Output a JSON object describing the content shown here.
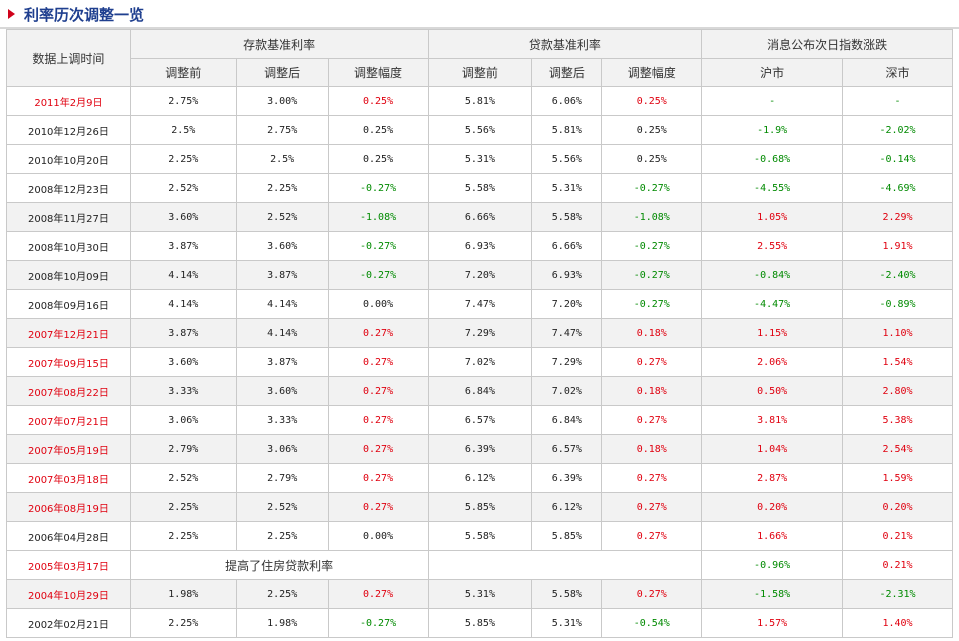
{
  "title": "利率历次调整一览",
  "headers": {
    "date": "数据上调时间",
    "deposit": "存款基准利率",
    "loan": "贷款基准利率",
    "index": "消息公布次日指数涨跌",
    "before": "调整前",
    "after": "调整后",
    "range": "调整幅度",
    "sh": "沪市",
    "sz": "深市"
  },
  "rows": [
    {
      "date": "2011年2月9日",
      "dc": "red",
      "d1": "2.75%",
      "d2": "3.00%",
      "d3": "0.25%",
      "d3c": "red",
      "l1": "5.81%",
      "l2": "6.06%",
      "l3": "0.25%",
      "l3c": "red",
      "sh": "-",
      "shc": "green",
      "sz": "-",
      "szc": "green",
      "alt": false
    },
    {
      "date": "2010年12月26日",
      "dc": "",
      "d1": "2.5%",
      "d2": "2.75%",
      "d3": "0.25%",
      "d3c": "",
      "l1": "5.56%",
      "l2": "5.81%",
      "l3": "0.25%",
      "l3c": "",
      "sh": "-1.9%",
      "shc": "green",
      "sz": "-2.02%",
      "szc": "green",
      "alt": false
    },
    {
      "date": "2010年10月20日",
      "dc": "",
      "d1": "2.25%",
      "d2": "2.5%",
      "d3": "0.25%",
      "d3c": "",
      "l1": "5.31%",
      "l2": "5.56%",
      "l3": "0.25%",
      "l3c": "",
      "sh": "-0.68%",
      "shc": "green",
      "sz": "-0.14%",
      "szc": "green",
      "alt": false
    },
    {
      "date": "2008年12月23日",
      "dc": "",
      "d1": "2.52%",
      "d2": "2.25%",
      "d3": "-0.27%",
      "d3c": "green",
      "l1": "5.58%",
      "l2": "5.31%",
      "l3": "-0.27%",
      "l3c": "green",
      "sh": "-4.55%",
      "shc": "green",
      "sz": "-4.69%",
      "szc": "green",
      "alt": false
    },
    {
      "date": "2008年11月27日",
      "dc": "",
      "d1": "3.60%",
      "d2": "2.52%",
      "d3": "-1.08%",
      "d3c": "green",
      "l1": "6.66%",
      "l2": "5.58%",
      "l3": "-1.08%",
      "l3c": "green",
      "sh": "1.05%",
      "shc": "red",
      "sz": "2.29%",
      "szc": "red",
      "alt": true
    },
    {
      "date": "2008年10月30日",
      "dc": "",
      "d1": "3.87%",
      "d2": "3.60%",
      "d3": "-0.27%",
      "d3c": "green",
      "l1": "6.93%",
      "l2": "6.66%",
      "l3": "-0.27%",
      "l3c": "green",
      "sh": "2.55%",
      "shc": "red",
      "sz": "1.91%",
      "szc": "red",
      "alt": false
    },
    {
      "date": "2008年10月09日",
      "dc": "",
      "d1": "4.14%",
      "d2": "3.87%",
      "d3": "-0.27%",
      "d3c": "green",
      "l1": "7.20%",
      "l2": "6.93%",
      "l3": "-0.27%",
      "l3c": "green",
      "sh": "-0.84%",
      "shc": "green",
      "sz": "-2.40%",
      "szc": "green",
      "alt": true
    },
    {
      "date": "2008年09月16日",
      "dc": "",
      "d1": "4.14%",
      "d2": "4.14%",
      "d3": "0.00%",
      "d3c": "",
      "l1": "7.47%",
      "l2": "7.20%",
      "l3": "-0.27%",
      "l3c": "green",
      "sh": "-4.47%",
      "shc": "green",
      "sz": "-0.89%",
      "szc": "green",
      "alt": false
    },
    {
      "date": "2007年12月21日",
      "dc": "red",
      "d1": "3.87%",
      "d2": "4.14%",
      "d3": "0.27%",
      "d3c": "red",
      "l1": "7.29%",
      "l2": "7.47%",
      "l3": "0.18%",
      "l3c": "red",
      "sh": "1.15%",
      "shc": "red",
      "sz": "1.10%",
      "szc": "red",
      "alt": true
    },
    {
      "date": "2007年09月15日",
      "dc": "red",
      "d1": "3.60%",
      "d2": "3.87%",
      "d3": "0.27%",
      "d3c": "red",
      "l1": "7.02%",
      "l2": "7.29%",
      "l3": "0.27%",
      "l3c": "red",
      "sh": "2.06%",
      "shc": "red",
      "sz": "1.54%",
      "szc": "red",
      "alt": false
    },
    {
      "date": "2007年08月22日",
      "dc": "red",
      "d1": "3.33%",
      "d2": "3.60%",
      "d3": "0.27%",
      "d3c": "red",
      "l1": "6.84%",
      "l2": "7.02%",
      "l3": "0.18%",
      "l3c": "red",
      "sh": "0.50%",
      "shc": "red",
      "sz": "2.80%",
      "szc": "red",
      "alt": true
    },
    {
      "date": "2007年07月21日",
      "dc": "red",
      "d1": "3.06%",
      "d2": "3.33%",
      "d3": "0.27%",
      "d3c": "red",
      "l1": "6.57%",
      "l2": "6.84%",
      "l3": "0.27%",
      "l3c": "red",
      "sh": "3.81%",
      "shc": "red",
      "sz": "5.38%",
      "szc": "red",
      "alt": false
    },
    {
      "date": "2007年05月19日",
      "dc": "red",
      "d1": "2.79%",
      "d2": "3.06%",
      "d3": "0.27%",
      "d3c": "red",
      "l1": "6.39%",
      "l2": "6.57%",
      "l3": "0.18%",
      "l3c": "red",
      "sh": "1.04%",
      "shc": "red",
      "sz": "2.54%",
      "szc": "red",
      "alt": true
    },
    {
      "date": "2007年03月18日",
      "dc": "red",
      "d1": "2.52%",
      "d2": "2.79%",
      "d3": "0.27%",
      "d3c": "red",
      "l1": "6.12%",
      "l2": "6.39%",
      "l3": "0.27%",
      "l3c": "red",
      "sh": "2.87%",
      "shc": "red",
      "sz": "1.59%",
      "szc": "red",
      "alt": false
    },
    {
      "date": "2006年08月19日",
      "dc": "red",
      "d1": "2.25%",
      "d2": "2.52%",
      "d3": "0.27%",
      "d3c": "red",
      "l1": "5.85%",
      "l2": "6.12%",
      "l3": "0.27%",
      "l3c": "red",
      "sh": "0.20%",
      "shc": "red",
      "sz": "0.20%",
      "szc": "red",
      "alt": true
    },
    {
      "date": "2006年04月28日",
      "dc": "",
      "d1": "2.25%",
      "d2": "2.25%",
      "d3": "0.00%",
      "d3c": "",
      "l1": "5.58%",
      "l2": "5.85%",
      "l3": "0.27%",
      "l3c": "red",
      "sh": "1.66%",
      "shc": "red",
      "sz": "0.21%",
      "szc": "red",
      "alt": false
    },
    {
      "date": "2005年03月17日",
      "dc": "red",
      "note": "提高了住房贷款利率",
      "sh": "-0.96%",
      "shc": "green",
      "sz": "0.21%",
      "szc": "red",
      "alt": false
    },
    {
      "date": "2004年10月29日",
      "dc": "red",
      "d1": "1.98%",
      "d2": "2.25%",
      "d3": "0.27%",
      "d3c": "red",
      "l1": "5.31%",
      "l2": "5.58%",
      "l3": "0.27%",
      "l3c": "red",
      "sh": "-1.58%",
      "shc": "green",
      "sz": "-2.31%",
      "szc": "green",
      "alt": true
    },
    {
      "date": "2002年02月21日",
      "dc": "",
      "d1": "2.25%",
      "d2": "1.98%",
      "d3": "-0.27%",
      "d3c": "green",
      "l1": "5.85%",
      "l2": "5.31%",
      "l3": "-0.54%",
      "l3c": "green",
      "sh": "1.57%",
      "shc": "red",
      "sz": "1.40%",
      "szc": "red",
      "alt": false
    }
  ]
}
